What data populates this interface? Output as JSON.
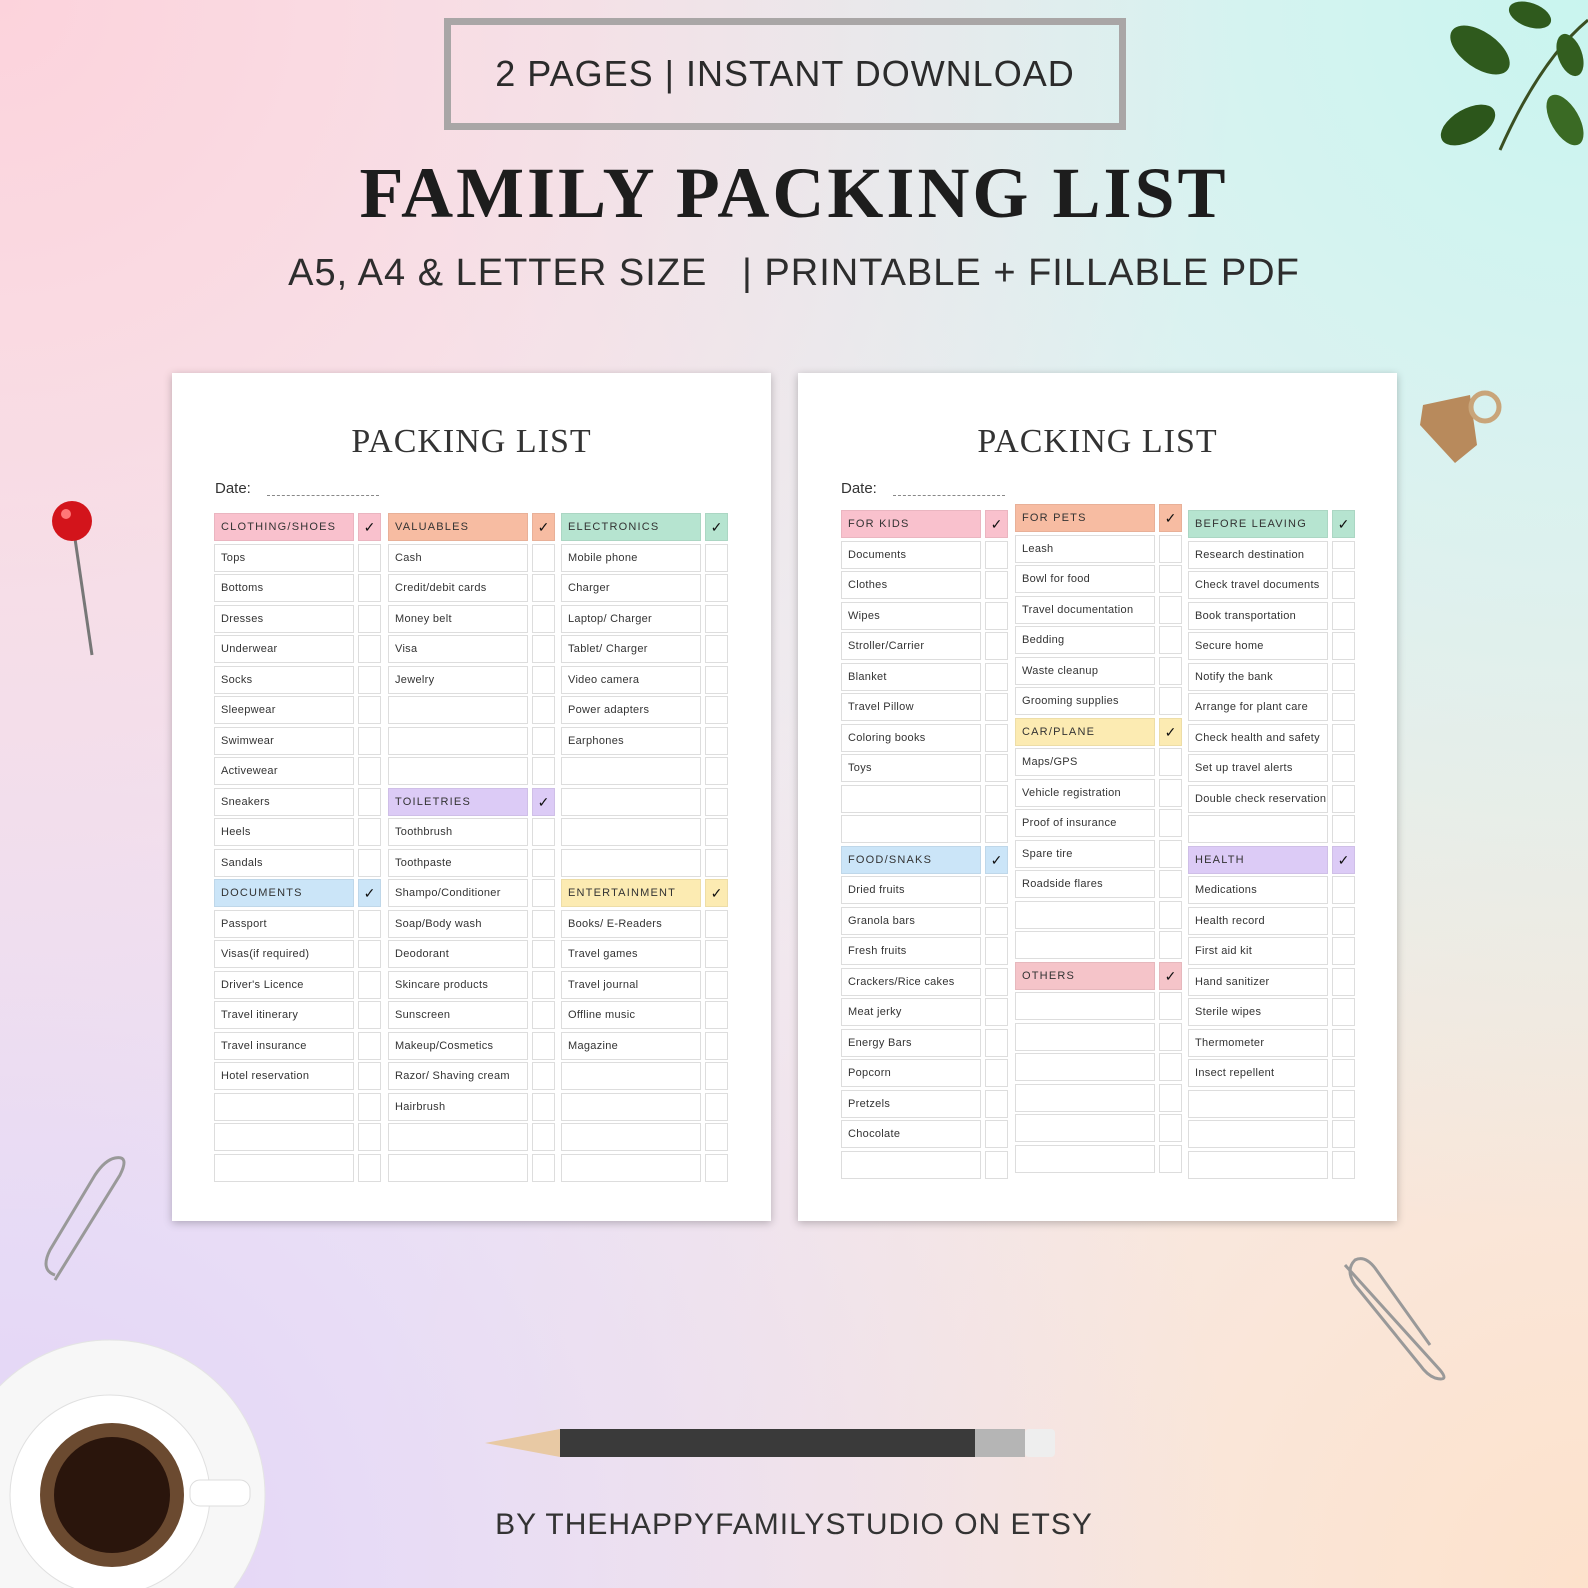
{
  "banner": "2 PAGES | INSTANT DOWNLOAD",
  "title": "FAMILY PACKING LIST",
  "subtitle": "A5, A4 & LETTER SIZE   | PRINTABLE + FILLABLE PDF",
  "footer": "BY THEHAPPYFAMILYSTUDIO ON ETSY",
  "check_mark": "✓",
  "colors": {
    "pink": "#f9c1cd",
    "peach": "#f7bca2",
    "mint": "#b6e4d0",
    "blue": "#cbe5f8",
    "lavender": "#dccbf6",
    "yellow": "#fcebb2",
    "rose": "#f5c4c9"
  },
  "pages": [
    {
      "title": "PACKING LIST",
      "date_label": "Date:",
      "columns": [
        {
          "sections": [
            {
              "header": "CLOTHING/SHOES",
              "color": "pink",
              "items": [
                "Tops",
                "Bottoms",
                "Dresses",
                "Underwear",
                "Socks",
                "Sleepwear",
                "Swimwear",
                "Activewear",
                "Sneakers",
                "Heels",
                "Sandals"
              ]
            },
            {
              "header": "DOCUMENTS",
              "color": "blue",
              "items": [
                "Passport",
                "Visas(if required)",
                "Driver's Licence",
                "Travel itinerary",
                "Travel insurance",
                "Hotel reservation",
                "",
                "",
                ""
              ]
            }
          ]
        },
        {
          "sections": [
            {
              "header": "VALUABLES",
              "color": "peach",
              "items": [
                "Cash",
                "Credit/debit cards",
                "Money belt",
                "Visa",
                "Jewelry",
                "",
                "",
                ""
              ]
            },
            {
              "header": "TOILETRIES",
              "color": "lavender",
              "items": [
                "Toothbrush",
                "Toothpaste",
                "Shampo/Conditioner",
                "Soap/Body wash",
                "Deodorant",
                "Skincare products",
                "Sunscreen",
                "Makeup/Cosmetics",
                "Razor/ Shaving cream",
                "Hairbrush",
                "",
                ""
              ]
            }
          ]
        },
        {
          "sections": [
            {
              "header": "ELECTRONICS",
              "color": "mint",
              "items": [
                "Mobile phone",
                "Charger",
                "Laptop/ Charger",
                "Tablet/ Charger",
                "Video camera",
                "Power adapters",
                "Earphones",
                "",
                "",
                "",
                ""
              ]
            },
            {
              "header": "ENTERTAINMENT",
              "color": "yellow",
              "items": [
                "Books/ E-Readers",
                "Travel games",
                "Travel journal",
                "Offline music",
                "Magazine",
                "",
                "",
                "",
                ""
              ]
            }
          ]
        }
      ]
    },
    {
      "title": "PACKING LIST",
      "date_label": "Date:",
      "columns": [
        {
          "sections": [
            {
              "header": "FOR KIDS",
              "color": "pink",
              "items": [
                "Documents",
                "Clothes",
                "Wipes",
                "Stroller/Carrier",
                "Blanket",
                "Travel Pillow",
                "Coloring books",
                "Toys",
                "",
                ""
              ]
            },
            {
              "header": "FOOD/SNAKS",
              "color": "blue",
              "items": [
                "Dried fruits",
                "Granola bars",
                "Fresh fruits",
                "Crackers/Rice cakes",
                "Meat jerky",
                "Energy Bars",
                "Popcorn",
                "Pretzels",
                "Chocolate",
                ""
              ]
            }
          ]
        },
        {
          "sections": [
            {
              "header": "FOR PETS",
              "color": "peach",
              "items": [
                "Leash",
                "Bowl for food",
                "Travel documentation",
                "Bedding",
                "Waste cleanup",
                "Grooming supplies"
              ]
            },
            {
              "header": "CAR/PLANE",
              "color": "yellow",
              "items": [
                "Maps/GPS",
                "Vehicle registration",
                "Proof of insurance",
                "Spare tire",
                "Roadside flares",
                "",
                ""
              ]
            },
            {
              "header": "OTHERS",
              "color": "rose",
              "items": [
                "",
                "",
                "",
                "",
                "",
                ""
              ]
            }
          ]
        },
        {
          "sections": [
            {
              "header": "BEFORE LEAVING",
              "color": "mint",
              "items": [
                "Research destination",
                "Check travel documents",
                "Book transportation",
                "Secure home",
                "Notify the bank",
                "Arrange for plant care",
                "Check health and safety",
                "Set up travel alerts",
                "Double check reservation",
                ""
              ]
            },
            {
              "header": "HEALTH",
              "color": "lavender",
              "items": [
                "Medications",
                "Health record",
                "First aid kit",
                "Hand sanitizer",
                "Sterile wipes",
                "Thermometer",
                "Insect repellent",
                "",
                "",
                ""
              ]
            }
          ]
        }
      ]
    }
  ]
}
